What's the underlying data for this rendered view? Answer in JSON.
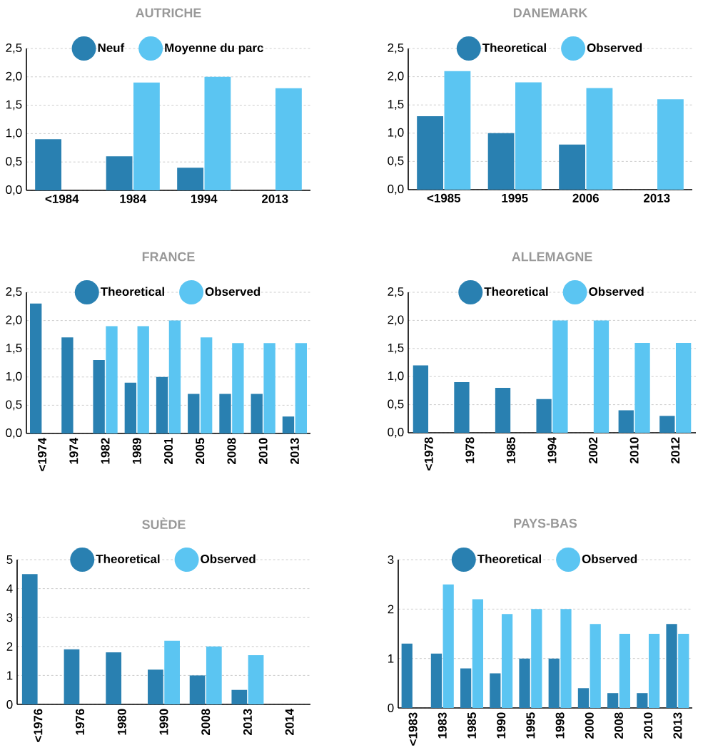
{
  "chart_data": [
    {
      "type": "bar",
      "title": "AUTRICHE",
      "categories": [
        "<1984",
        "1984",
        "1994",
        "2013"
      ],
      "series": [
        {
          "name": "Neuf",
          "color": "#2980b1",
          "values": [
            0.9,
            0.6,
            0.4,
            null
          ]
        },
        {
          "name": "Moyenne du parc",
          "color": "#5bc5f2",
          "values": [
            null,
            1.9,
            2.0,
            1.8
          ]
        }
      ],
      "ylim": [
        0,
        2.5
      ],
      "yticks": [
        {
          "value": 0,
          "label": "0,0"
        },
        {
          "value": 0.5,
          "label": "0,5"
        },
        {
          "value": 1,
          "label": "1,0"
        },
        {
          "value": 1.5,
          "label": "1,5"
        },
        {
          "value": 2,
          "label": "2,0"
        },
        {
          "value": 2.5,
          "label": "2,5"
        }
      ],
      "grid": "y",
      "legend": "top"
    },
    {
      "type": "bar",
      "title": "DANEMARK",
      "categories": [
        "<1985",
        "1995",
        "2006",
        "2013"
      ],
      "series": [
        {
          "name": "Theoretical",
          "color": "#2980b1",
          "values": [
            1.3,
            1.0,
            0.8,
            null
          ]
        },
        {
          "name": "Observed",
          "color": "#5bc5f2",
          "values": [
            2.1,
            1.9,
            1.8,
            1.6
          ]
        }
      ],
      "ylim": [
        0,
        2.5
      ],
      "yticks": [
        {
          "value": 0,
          "label": "0,0"
        },
        {
          "value": 0.5,
          "label": "0,5"
        },
        {
          "value": 1,
          "label": "1,0"
        },
        {
          "value": 1.5,
          "label": "1,5"
        },
        {
          "value": 2,
          "label": "2,0"
        },
        {
          "value": 2.5,
          "label": "2,5"
        }
      ],
      "grid": "y",
      "legend": "top"
    },
    {
      "type": "bar",
      "title": "FRANCE",
      "categories": [
        "<1974",
        "1974",
        "1982",
        "1989",
        "2001",
        "2005",
        "2008",
        "2010",
        "2013"
      ],
      "series": [
        {
          "name": "Theoretical",
          "color": "#2980b1",
          "values": [
            2.3,
            1.7,
            1.3,
            0.9,
            1.0,
            0.7,
            0.7,
            0.7,
            0.3
          ]
        },
        {
          "name": "Observed",
          "color": "#5bc5f2",
          "values": [
            null,
            null,
            1.9,
            1.9,
            2.0,
            1.7,
            1.6,
            1.6,
            1.6
          ]
        }
      ],
      "ylim": [
        0,
        2.5
      ],
      "yticks": [
        {
          "value": 0,
          "label": "0,0"
        },
        {
          "value": 0.5,
          "label": "0,5"
        },
        {
          "value": 1,
          "label": "1,0"
        },
        {
          "value": 1.5,
          "label": "1,5"
        },
        {
          "value": 2,
          "label": "2,0"
        },
        {
          "value": 2.5,
          "label": "2,5"
        }
      ],
      "grid": "y",
      "legend": "top"
    },
    {
      "type": "bar",
      "title": "ALLEMAGNE",
      "categories": [
        "<1978",
        "1978",
        "1985",
        "1994",
        "2002",
        "2010",
        "2012"
      ],
      "series": [
        {
          "name": "Theoretical",
          "color": "#2980b1",
          "values": [
            1.2,
            0.9,
            0.8,
            0.6,
            null,
            0.4,
            0.3
          ]
        },
        {
          "name": "Observed",
          "color": "#5bc5f2",
          "values": [
            null,
            null,
            null,
            2.0,
            2.0,
            1.6,
            1.6
          ]
        }
      ],
      "ylim": [
        0,
        2.5
      ],
      "yticks": [
        {
          "value": 0,
          "label": "0,0"
        },
        {
          "value": 0.5,
          "label": "0,5"
        },
        {
          "value": 1,
          "label": "1,0"
        },
        {
          "value": 1.5,
          "label": "1,5"
        },
        {
          "value": 2,
          "label": "2,0"
        },
        {
          "value": 2.5,
          "label": "2,5"
        }
      ],
      "grid": "y",
      "legend": "top"
    },
    {
      "type": "bar",
      "title": "SUÈDE",
      "categories": [
        "<1976",
        "1976",
        "1980",
        "1990",
        "2008",
        "2013",
        "2014"
      ],
      "series": [
        {
          "name": "Theoretical",
          "color": "#2980b1",
          "values": [
            4.5,
            1.9,
            1.8,
            1.2,
            1.0,
            0.5,
            null
          ]
        },
        {
          "name": "Observed",
          "color": "#5bc5f2",
          "values": [
            null,
            null,
            null,
            2.2,
            2.0,
            1.7,
            null
          ]
        }
      ],
      "ylim": [
        0,
        5
      ],
      "yticks": [
        0,
        1,
        2,
        3,
        4,
        5
      ],
      "grid": "y",
      "legend": "top"
    },
    {
      "type": "bar",
      "title": "PAYS-BAS",
      "categories": [
        "<1983",
        "1983",
        "1985",
        "1990",
        "1995",
        "1998",
        "2000",
        "2008",
        "2010",
        "2013"
      ],
      "series": [
        {
          "name": "Theoretical",
          "color": "#2980b1",
          "values": [
            1.3,
            1.1,
            0.8,
            0.7,
            1.0,
            1.0,
            0.4,
            0.3,
            0.3,
            1.7
          ]
        },
        {
          "name": "Observed",
          "color": "#5bc5f2",
          "values": [
            null,
            2.5,
            2.2,
            1.9,
            2.0,
            2.0,
            1.7,
            1.5,
            1.5,
            1.5
          ]
        }
      ],
      "ylim": [
        0,
        3
      ],
      "yticks": [
        0,
        1,
        2,
        3
      ],
      "grid": "y",
      "legend": "top"
    }
  ]
}
